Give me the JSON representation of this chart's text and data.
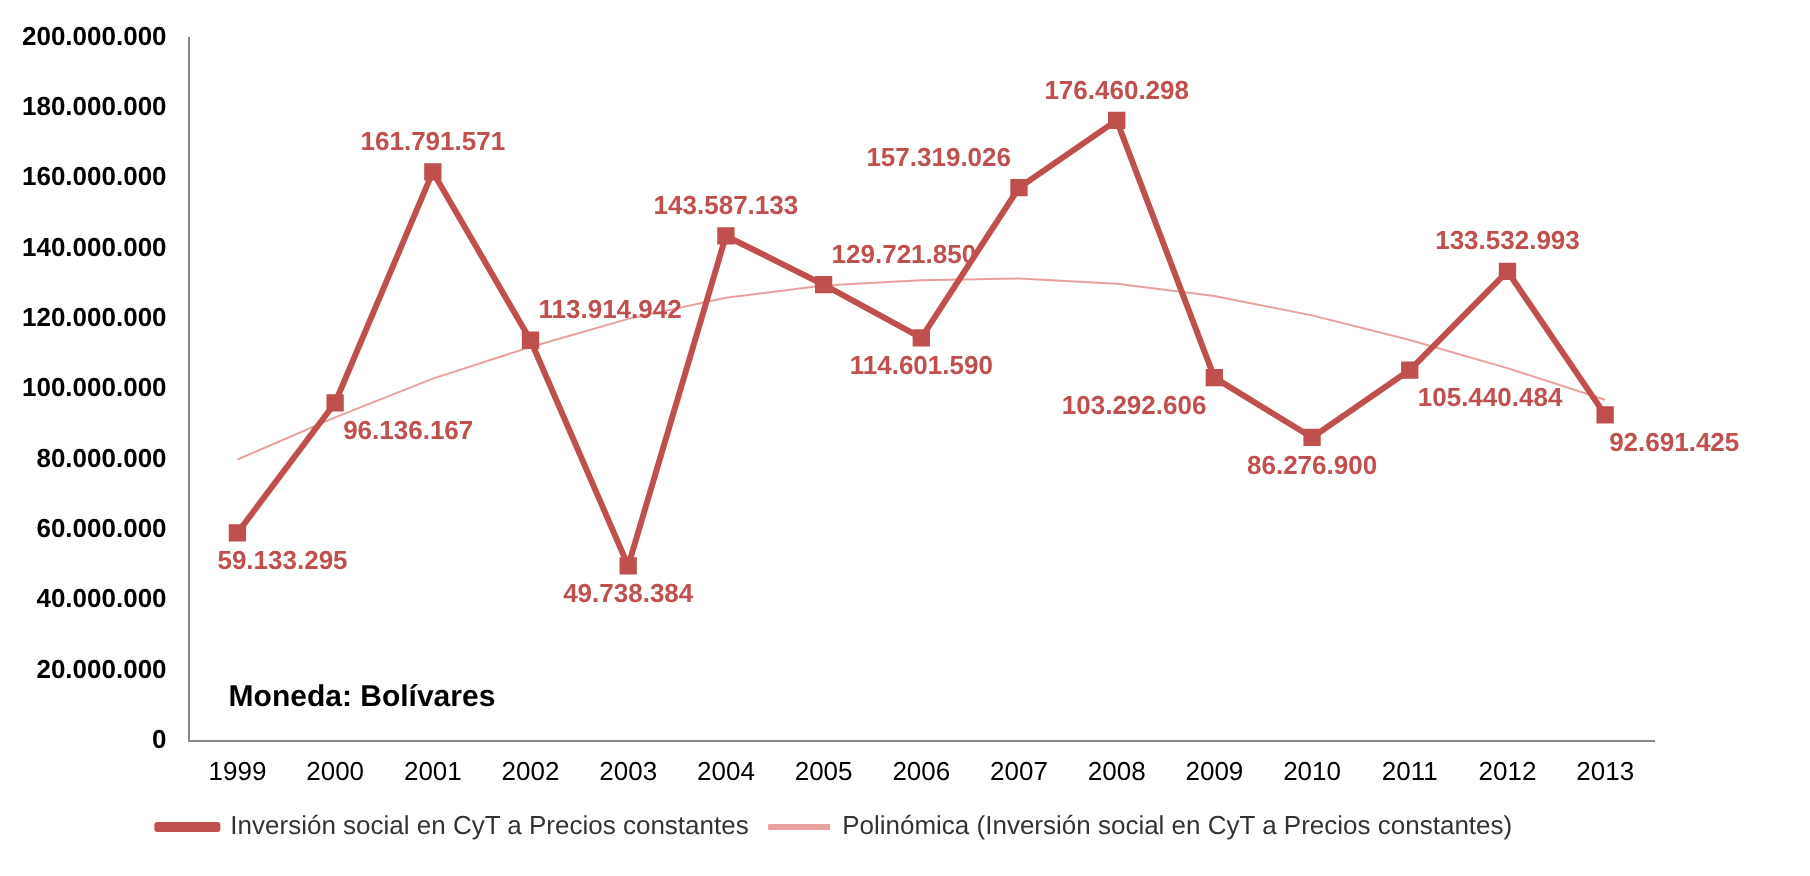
{
  "chart_data": {
    "type": "line",
    "categories": [
      "1999",
      "2000",
      "2001",
      "2002",
      "2003",
      "2004",
      "2005",
      "2006",
      "2007",
      "2008",
      "2009",
      "2010",
      "2011",
      "2012",
      "2013"
    ],
    "series": [
      {
        "name": "Inversión social en CyT a Precios constantes",
        "color": "#c0504d",
        "marker": "square",
        "values": [
          59133295,
          96136167,
          161791571,
          113914942,
          49738384,
          143587133,
          129721850,
          114601590,
          157319026,
          176460298,
          103292606,
          86276900,
          105440484,
          133532993,
          92691425
        ],
        "value_labels": [
          "59.133.295",
          "96.136.167",
          "161.791.571",
          "113.914.942",
          "49.738.384",
          "143.587.133",
          "129.721.850",
          "114.601.590",
          "157.319.026",
          "176.460.298",
          "103.292.606",
          "86.276.900",
          "105.440.484",
          "133.532.993",
          "92.691.425"
        ]
      },
      {
        "name": "Polinómica (Inversión social en CyT a Precios constantes)",
        "color": "#e8a09e",
        "marker": "none",
        "values": [
          80000000,
          92000000,
          103000000,
          112000000,
          120000000,
          126000000,
          129500000,
          131000000,
          131500000,
          130000000,
          126500000,
          121000000,
          114000000,
          106000000,
          97000000
        ]
      }
    ],
    "ylim": [
      0,
      200000000
    ],
    "yticks": [
      {
        "value": 0,
        "label": "0"
      },
      {
        "value": 20000000,
        "label": "20.000.000"
      },
      {
        "value": 40000000,
        "label": "40.000.000"
      },
      {
        "value": 60000000,
        "label": "60.000.000"
      },
      {
        "value": 80000000,
        "label": "80.000.000"
      },
      {
        "value": 100000000,
        "label": "100.000.000"
      },
      {
        "value": 120000000,
        "label": "120.000.000"
      },
      {
        "value": 140000000,
        "label": "140.000.000"
      },
      {
        "value": 160000000,
        "label": "160.000.000"
      },
      {
        "value": 180000000,
        "label": "180.000.000"
      },
      {
        "value": 200000000,
        "label": "200.000.000"
      }
    ],
    "grid": false,
    "legend": "bottom",
    "line_style": "solid",
    "annotations": [
      "Moneda: Bolívares"
    ]
  }
}
